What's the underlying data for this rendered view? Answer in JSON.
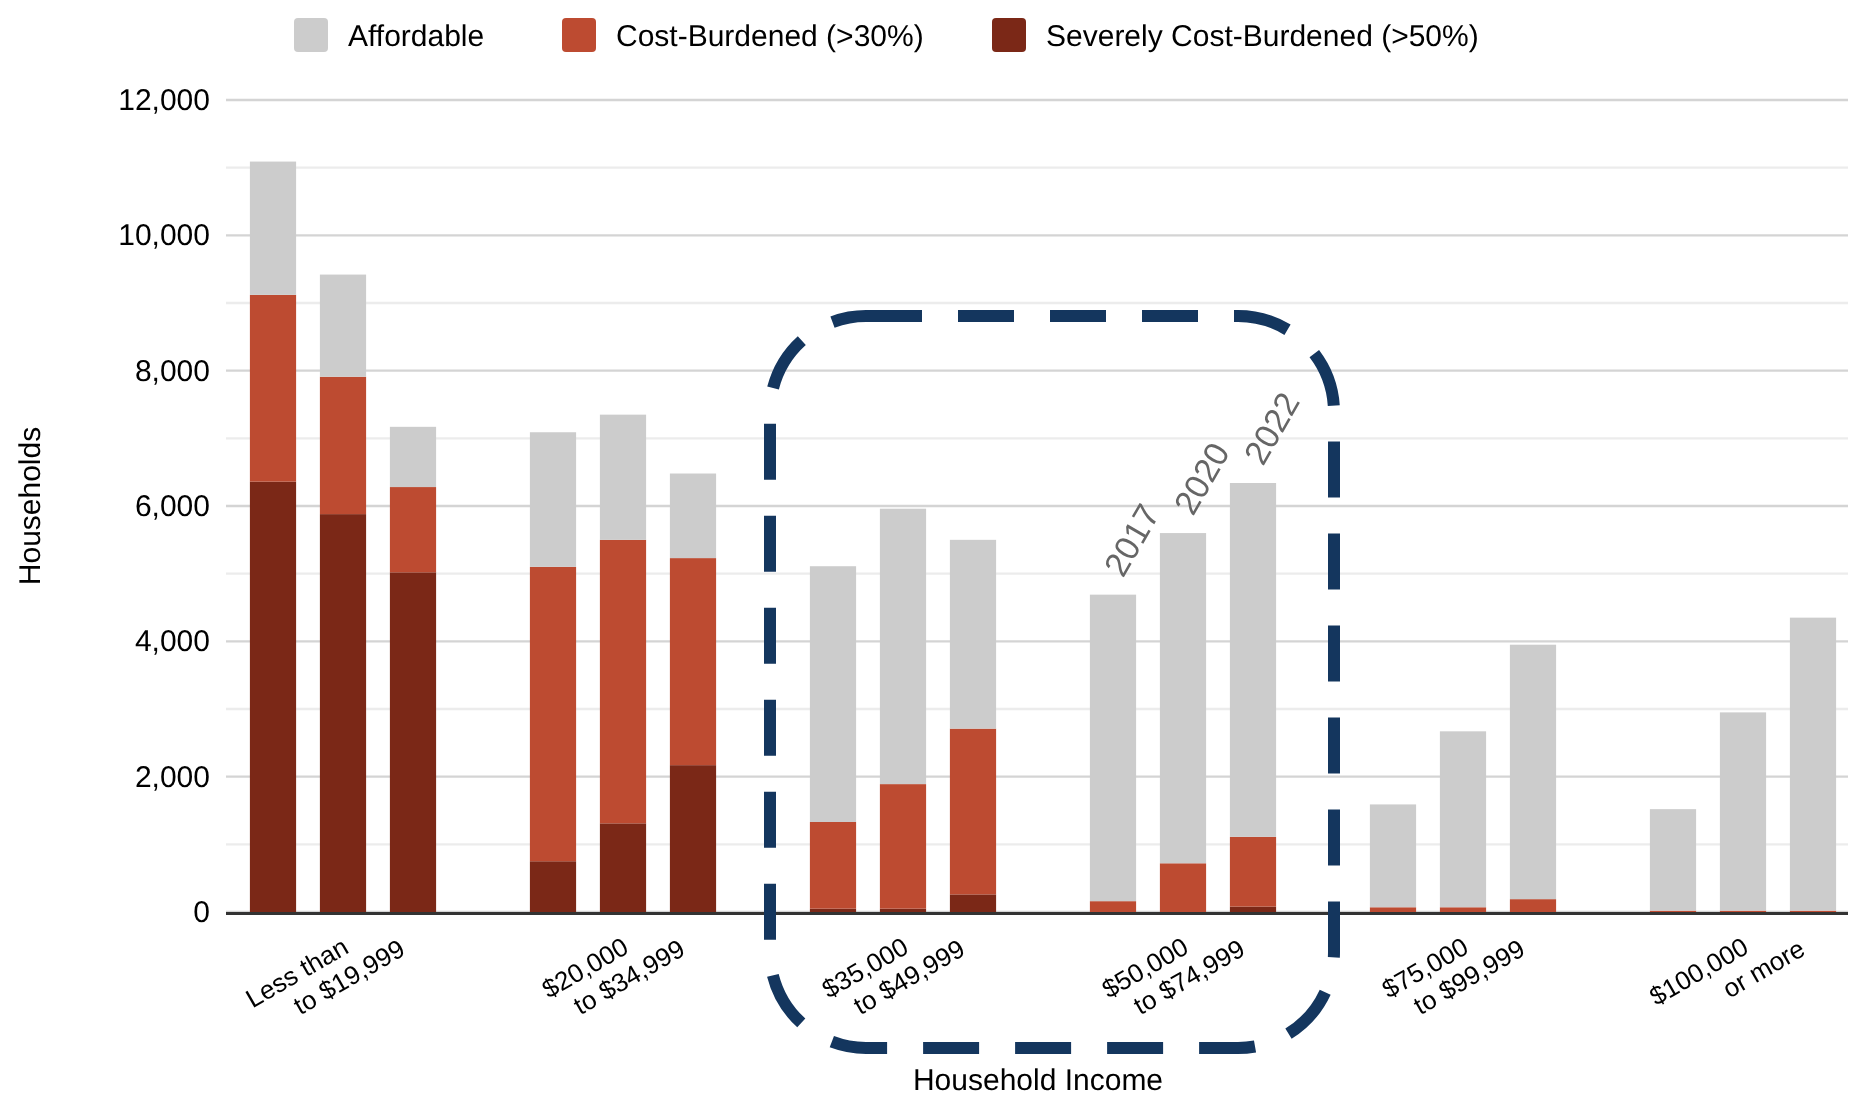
{
  "chart_data": {
    "type": "bar",
    "stacked": true,
    "xlabel": "Household Income",
    "ylabel": "Households",
    "categories": [
      null,
      "Less than\nto $19,999",
      null,
      null,
      null,
      "$20,000\nto $34,999",
      null,
      null,
      null,
      "$35,000\nto $49,999",
      null,
      null,
      null,
      "$50,000\nto $74,999",
      null,
      null,
      null,
      "$75,000\nto $99,999",
      null,
      null,
      null,
      "$100,000\nor more",
      null
    ],
    "series": [
      {
        "name": "Severely Cost-Burdened (>50%)",
        "color": "#7b2817",
        "values": [
          6360,
          5880,
          5020,
          null,
          750,
          1310,
          2170,
          null,
          50,
          50,
          260,
          null,
          0,
          0,
          80,
          null,
          0,
          0,
          0,
          null,
          0,
          0,
          0
        ]
      },
      {
        "name": "Cost-Burdened (>30%)",
        "color": "#bd4b31",
        "values": [
          2760,
          2030,
          1260,
          null,
          4350,
          4190,
          3060,
          null,
          1280,
          1840,
          2450,
          null,
          160,
          720,
          1030,
          null,
          70,
          70,
          190,
          null,
          20,
          20,
          20
        ]
      },
      {
        "name": "Affordable",
        "color": "#cccccc",
        "values": [
          1970,
          1510,
          890,
          null,
          1990,
          1850,
          1250,
          null,
          3780,
          4070,
          2790,
          null,
          4530,
          4880,
          5230,
          null,
          1520,
          2600,
          3760,
          null,
          1500,
          2930,
          4330
        ]
      }
    ],
    "ylim": [
      0,
      12000
    ],
    "yticks": [
      0,
      {
        "value": 1000,
        "label": null
      },
      {
        "value": 2000,
        "label": "2,000"
      },
      {
        "value": 3000,
        "label": null
      },
      {
        "value": 4000,
        "label": "4,000"
      },
      {
        "value": 5000,
        "label": null
      },
      {
        "value": 6000,
        "label": "6,000"
      },
      {
        "value": 7000,
        "label": null
      },
      {
        "value": 8000,
        "label": "8,000"
      },
      {
        "value": 9000,
        "label": null
      },
      {
        "value": 10000,
        "label": "10,000"
      },
      {
        "value": 11000,
        "label": null
      },
      {
        "value": 12000,
        "label": "12,000"
      }
    ],
    "annotations": [
      {
        "text": "2017",
        "y": 4690
      },
      {
        "text": "2020",
        "y": 5600
      },
      {
        "text": "2022",
        "y": 6340
      }
    ],
    "grid": "y",
    "legend": "top"
  }
}
